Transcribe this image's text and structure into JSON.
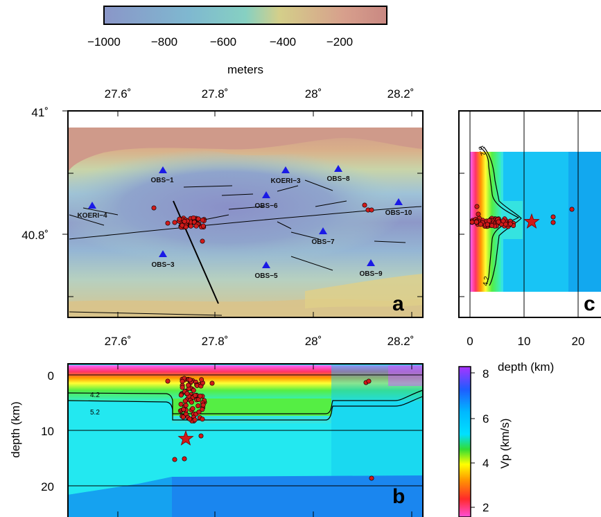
{
  "colorbar_top": {
    "ticks": [
      "−1000",
      "−800",
      "−600",
      "−400",
      "−200"
    ],
    "label": "meters"
  },
  "map_a": {
    "letter": "a",
    "lon_ticks": [
      "27.6˚",
      "27.8˚",
      "28˚",
      "28.2˚"
    ],
    "lat_ticks": [
      "41˚",
      "40.8˚"
    ],
    "stations": [
      {
        "name": "OBS−1"
      },
      {
        "name": "OBS−8"
      },
      {
        "name": "KOERI−3"
      },
      {
        "name": "OBS−6"
      },
      {
        "name": "KOERI−4"
      },
      {
        "name": "OBS−10"
      },
      {
        "name": "OBS−7"
      },
      {
        "name": "OBS−3"
      },
      {
        "name": "OBS−5"
      },
      {
        "name": "OBS−9"
      }
    ]
  },
  "section_b": {
    "letter": "b",
    "ylabel": "depth (km)",
    "y_ticks": [
      "0",
      "10",
      "20"
    ],
    "contours": [
      "4.2",
      "5.2"
    ]
  },
  "section_c": {
    "letter": "c",
    "x_ticks": [
      "0",
      "10",
      "20"
    ],
    "xlabel": "depth (km)",
    "contours": [
      "5.2",
      "4.2"
    ]
  },
  "colorbar_vp": {
    "ticks": [
      "8",
      "6",
      "4",
      "2"
    ],
    "label": "Vp (km/s)"
  },
  "colors": {
    "marker": "#d11a1a",
    "station": "#1a1ae6",
    "star": "#d11a1a"
  }
}
